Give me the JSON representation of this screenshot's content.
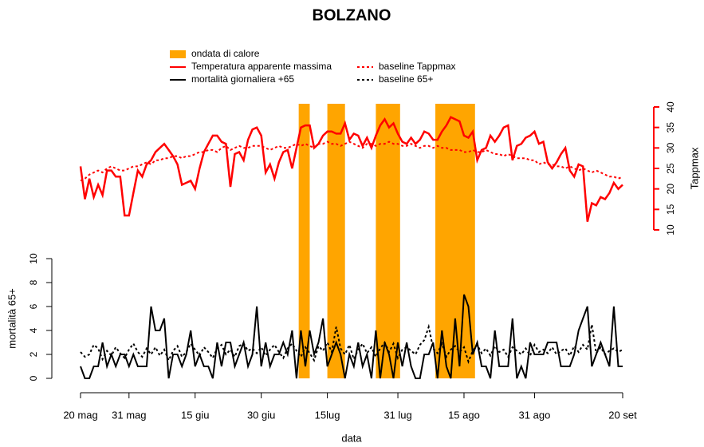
{
  "chart_data": {
    "type": "line",
    "title": "BOLZANO",
    "x_label": "data",
    "xlim": [
      0,
      123
    ],
    "xticks": [
      {
        "value": 0,
        "label": "20 mag"
      },
      {
        "value": 11,
        "label": "31 mag"
      },
      {
        "value": 26,
        "label": "15 giu"
      },
      {
        "value": 41,
        "label": "30 giu"
      },
      {
        "value": 56,
        "label": "15lug"
      },
      {
        "value": 72,
        "label": "31 lug"
      },
      {
        "value": 87,
        "label": "15 ago"
      },
      {
        "value": 103,
        "label": "31 ago"
      },
      {
        "value": 123,
        "label": "20 set"
      }
    ],
    "x": [
      0,
      1,
      2,
      3,
      4,
      5,
      6,
      7,
      8,
      9,
      10,
      11,
      12,
      13,
      14,
      15,
      16,
      17,
      18,
      19,
      20,
      21,
      22,
      23,
      24,
      25,
      26,
      27,
      28,
      29,
      30,
      31,
      32,
      33,
      34,
      35,
      36,
      37,
      38,
      39,
      40,
      41,
      42,
      43,
      44,
      45,
      46,
      47,
      48,
      49,
      50,
      51,
      52,
      53,
      54,
      55,
      56,
      57,
      58,
      59,
      60,
      61,
      62,
      63,
      64,
      65,
      66,
      67,
      68,
      69,
      70,
      71,
      72,
      73,
      74,
      75,
      76,
      77,
      78,
      79,
      80,
      81,
      82,
      83,
      84,
      85,
      86,
      87,
      88,
      89,
      90,
      91,
      92,
      93,
      94,
      95,
      96,
      97,
      98,
      99,
      100,
      101,
      102,
      103,
      104,
      105,
      106,
      107,
      108,
      109,
      110,
      111,
      112,
      113,
      114,
      115,
      116,
      117,
      118,
      119,
      120,
      121,
      122,
      123
    ],
    "heatwave_label": "ondata di calore",
    "heatwave_color": "#ffa500",
    "heatwaves": [
      [
        49.5,
        52
      ],
      [
        56,
        60
      ],
      [
        67,
        72.5
      ],
      [
        80.5,
        89.5
      ]
    ],
    "panels": [
      {
        "y_label": "Tappmax",
        "axis_side": "right",
        "axis_color": "#ff0000",
        "ylim": [
          10,
          40
        ],
        "yticks": [
          10,
          15,
          20,
          25,
          30,
          35,
          40
        ],
        "series": [
          {
            "name": "Temperatura apparente massima",
            "color": "#ff0000",
            "dashed": false,
            "width": 2.5,
            "values": [
              25.5,
              17.5,
              22.5,
              18,
              21,
              18.5,
              24.5,
              24.5,
              23,
              23,
              13.5,
              13.5,
              19,
              24.5,
              23,
              26,
              27,
              29,
              30,
              31,
              29.5,
              28,
              26,
              21,
              21.5,
              22,
              20,
              25,
              29,
              31,
              33,
              33,
              31.5,
              31,
              20.5,
              28.5,
              29,
              27,
              32,
              34.5,
              35,
              33,
              24,
              26,
              22.5,
              26.5,
              29,
              29.5,
              25,
              30,
              35,
              35.5,
              35.5,
              30,
              31,
              33,
              34,
              34,
              33.5,
              33.5,
              36,
              32,
              33.5,
              33,
              30.5,
              32.5,
              30,
              33,
              35.5,
              37,
              35,
              36,
              33.5,
              31.5,
              31,
              32.5,
              31,
              32,
              34,
              33.5,
              32,
              32,
              34,
              35.5,
              37.5,
              37,
              36.5,
              33,
              32.5,
              34,
              27,
              29.5,
              30,
              33,
              31.5,
              33,
              35,
              35.5,
              27,
              30.5,
              31,
              32.5,
              33,
              34,
              31,
              31.5,
              26.5,
              25,
              26.5,
              28.5,
              30,
              24.5,
              23,
              26,
              25.5,
              12,
              16.5,
              16,
              18,
              17.5,
              19,
              21.5,
              20,
              21
            ]
          },
          {
            "name": "baseline Tappmax",
            "color": "#ff0000",
            "dashed": true,
            "width": 2,
            "values": [
              22,
              22.5,
              23.5,
              24,
              24.5,
              24,
              25,
              25.5,
              25,
              24.5,
              24.5,
              25,
              25.5,
              25.5,
              26,
              26.5,
              26,
              27,
              27,
              27.5,
              27.5,
              28,
              28,
              27.5,
              28,
              28,
              28.5,
              29,
              29,
              29.5,
              29.5,
              29,
              30,
              30.5,
              29.5,
              30,
              30.5,
              30,
              30,
              30.5,
              30.5,
              30.5,
              30,
              29.5,
              30,
              30.5,
              30,
              30,
              30.5,
              31,
              30.5,
              31,
              30.5,
              30,
              31,
              31,
              31.5,
              31,
              31,
              30.5,
              31,
              31.5,
              31,
              30.5,
              30,
              31,
              31,
              30.5,
              31,
              31,
              31.5,
              31,
              31,
              30.5,
              30.5,
              31,
              30.5,
              30,
              30.5,
              30.5,
              30,
              30.5,
              30,
              30,
              29.5,
              29.5,
              29.5,
              29,
              29,
              29.5,
              29,
              29,
              29.5,
              29,
              28.5,
              28.5,
              28,
              28.5,
              28,
              27.5,
              27.5,
              27.5,
              27,
              27,
              26,
              26.5,
              26,
              26,
              25.5,
              25.5,
              25,
              25.5,
              25,
              24.5,
              25,
              24.5,
              24,
              24.5,
              24,
              23.5,
              23,
              23,
              22.5,
              23
            ]
          }
        ]
      },
      {
        "y_label": "mortalità 65+",
        "axis_side": "left",
        "axis_color": "#000000",
        "ylim": [
          0,
          10
        ],
        "yticks": [
          0,
          2,
          4,
          6,
          8,
          10
        ],
        "series": [
          {
            "name": "mortalità giornaliera +65",
            "color": "#000000",
            "dashed": false,
            "width": 2,
            "values": [
              1,
              0,
              0,
              1,
              1,
              3,
              1,
              2,
              1,
              2,
              2,
              1,
              2,
              1,
              1,
              1,
              6,
              4,
              4,
              5,
              0,
              2,
              2,
              1,
              2,
              4,
              1,
              2,
              1,
              1,
              0,
              3,
              1,
              3,
              3,
              1,
              2,
              3,
              1,
              2,
              6,
              1,
              3,
              1,
              2,
              2,
              3,
              2,
              4,
              0,
              4,
              1,
              4,
              2,
              3,
              5,
              1,
              2,
              3,
              2,
              0,
              2,
              1,
              3,
              1,
              2,
              0,
              4,
              0,
              3,
              2,
              0,
              3,
              1,
              3,
              1,
              0,
              0,
              2,
              2,
              3,
              0,
              4,
              1,
              0,
              5,
              1,
              7,
              6,
              2,
              3,
              1,
              1,
              0,
              4,
              1,
              1,
              1,
              5,
              0,
              1,
              0,
              3,
              2,
              2,
              2,
              3,
              3,
              3,
              1,
              1,
              1,
              2,
              4,
              5,
              6,
              1,
              2,
              3,
              2,
              1,
              6,
              1,
              1
            ]
          },
          {
            "name": "baseline 65+",
            "color": "#000000",
            "dashed": true,
            "width": 2,
            "values": [
              2.2,
              1.8,
              2,
              2.8,
              2.5,
              1.6,
              2.3,
              1.9,
              2.6,
              2.1,
              1.7,
              2.4,
              2.9,
              2.2,
              1.8,
              2.5,
              2,
              2.6,
              1.9,
              2.4,
              1.5,
              2.3,
              2.7,
              1.8,
              2.2,
              2.9,
              2.4,
              1.9,
              2.6,
              2.2,
              1.7,
              2.5,
              2.8,
              2,
              2.4,
              1.8,
              2.7,
              2.9,
              2.3,
              2.5,
              2.1,
              2.6,
              1.9,
              2.4,
              2.8,
              2.2,
              1.7,
              2.5,
              2.9,
              2.3,
              1.8,
              2.6,
              2.1,
              1.5,
              2.7,
              2.3,
              3,
              2.2,
              4.3,
              2.5,
              2,
              2.8,
              1.6,
              2.4,
              2.9,
              2.1,
              2.6,
              1.8,
              2.5,
              3,
              2.2,
              2.9,
              1.7,
              2.4,
              2.6,
              2.3,
              2,
              2.8,
              3.2,
              4.3,
              2.5,
              2.1,
              2.9,
              1.8,
              2.4,
              2.7,
              2.2,
              2.6,
              1.4,
              2.3,
              2.8,
              2.1,
              2.5,
              1.9,
              2.7,
              2.2,
              2.4,
              1.8,
              2.6,
              2.3,
              2,
              2.5,
              1.9,
              2.8,
              2.2,
              2.4,
              2.1,
              2.6,
              2,
              2.3,
              2.5,
              1.9,
              2.7,
              2.2,
              2.8,
              2.4,
              4.5,
              2.1,
              2.6,
              2,
              2.3,
              2.5,
              2.2,
              2.4
            ]
          }
        ]
      }
    ]
  }
}
